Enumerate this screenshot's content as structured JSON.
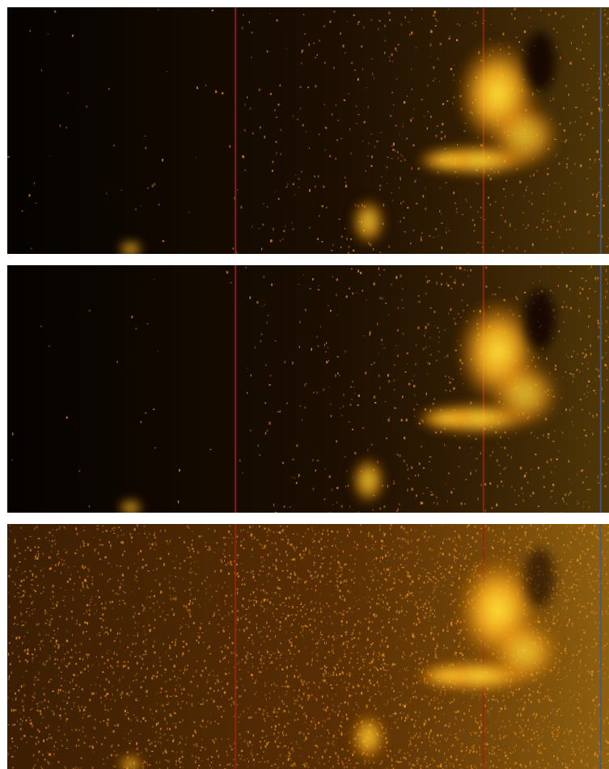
{
  "figure": {
    "panels": [
      {
        "id": "panel-1",
        "background": "#050200",
        "noise": 0.28,
        "leftNoise": 0.02,
        "fade": 0.55
      },
      {
        "id": "panel-2",
        "background": "#050200",
        "noise": 0.3,
        "leftNoise": 0.015,
        "fade": 0.55
      },
      {
        "id": "panel-3",
        "background": "#1b0d02",
        "noise": 0.62,
        "leftNoise": 0.35,
        "fade": 0.9
      }
    ],
    "colors": {
      "glow_bright": "#ffe23a",
      "glow_mid": "#ffb21e",
      "glow_dark": "#c96b07",
      "speckle": "#e08c1a",
      "red_line": "#9b2410",
      "blue_line": "#3b5b8c",
      "separator": "#ffffff"
    }
  }
}
